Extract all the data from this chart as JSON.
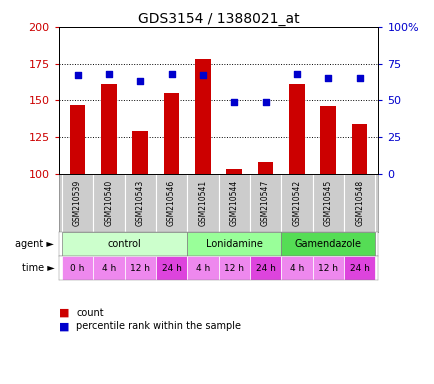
{
  "title": "GDS3154 / 1388021_at",
  "samples": [
    "GSM210539",
    "GSM210540",
    "GSM210543",
    "GSM210546",
    "GSM210541",
    "GSM210544",
    "GSM210547",
    "GSM210542",
    "GSM210545",
    "GSM210548"
  ],
  "count_values": [
    147,
    161,
    129,
    155,
    178,
    103,
    108,
    161,
    146,
    134
  ],
  "percentile_values": [
    67,
    68,
    63,
    68,
    67,
    49,
    49,
    68,
    65,
    65
  ],
  "ylim_left": [
    100,
    200
  ],
  "ylim_right": [
    0,
    100
  ],
  "yticks_left": [
    100,
    125,
    150,
    175,
    200
  ],
  "yticks_right": [
    0,
    25,
    50,
    75,
    100
  ],
  "ytick_labels_left": [
    "100",
    "125",
    "150",
    "175",
    "200"
  ],
  "ytick_labels_right": [
    "0",
    "25",
    "50",
    "75",
    "100%"
  ],
  "agent_groups": [
    {
      "label": "control",
      "start": 0,
      "end": 4,
      "color": "#ccffcc"
    },
    {
      "label": "Lonidamine",
      "start": 4,
      "end": 7,
      "color": "#99ff99"
    },
    {
      "label": "Gamendazole",
      "start": 7,
      "end": 10,
      "color": "#55dd55"
    }
  ],
  "time_labels": [
    "0 h",
    "4 h",
    "12 h",
    "24 h",
    "4 h",
    "12 h",
    "24 h",
    "4 h",
    "12 h",
    "24 h"
  ],
  "time_colors": [
    "#ee88ee",
    "#ee88ee",
    "#ee88ee",
    "#dd44dd",
    "#ee88ee",
    "#ee88ee",
    "#dd44dd",
    "#ee88ee",
    "#ee88ee",
    "#dd44dd"
  ],
  "bar_color": "#cc0000",
  "dot_color": "#0000cc",
  "grid_color": "black",
  "bar_width": 0.5,
  "sample_bg_color": "#cccccc",
  "legend_count_label": "count",
  "legend_pct_label": "percentile rank within the sample"
}
